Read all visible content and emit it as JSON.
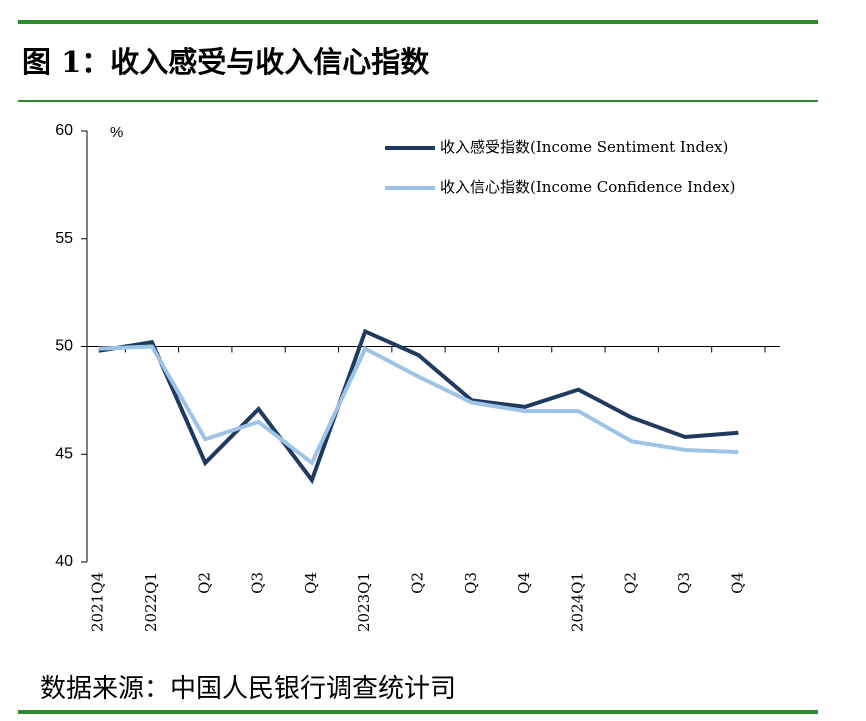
{
  "header": {
    "title": "图 1：收入感受与收入信心指数"
  },
  "chart_data": {
    "type": "line",
    "y_label": "%",
    "categories": [
      "2021Q4",
      "2022Q1",
      "Q2",
      "Q3",
      "Q4",
      "2023Q1",
      "Q2",
      "Q3",
      "Q4",
      "2024Q1",
      "Q2",
      "Q3",
      "Q4"
    ],
    "series": [
      {
        "name": "收入感受指数(Income Sentiment Index)",
        "color": "#1f3a5f",
        "values": [
          49.8,
          50.2,
          44.6,
          47.1,
          43.8,
          50.7,
          49.6,
          47.5,
          47.2,
          48.0,
          46.7,
          45.8,
          46.0
        ]
      },
      {
        "name": "收入信心指数(Income Confidence Index)",
        "color": "#9dc3e6",
        "values": [
          49.9,
          50.0,
          45.7,
          46.5,
          44.6,
          49.9,
          48.6,
          47.4,
          47.0,
          47.0,
          45.6,
          45.2,
          45.1
        ]
      }
    ],
    "ylim": [
      40,
      60
    ],
    "yticks": [
      40,
      45,
      50,
      55,
      60
    ],
    "legend": "upper right"
  },
  "footer": {
    "source": "数据来源：中国人民银行调查统计司"
  }
}
